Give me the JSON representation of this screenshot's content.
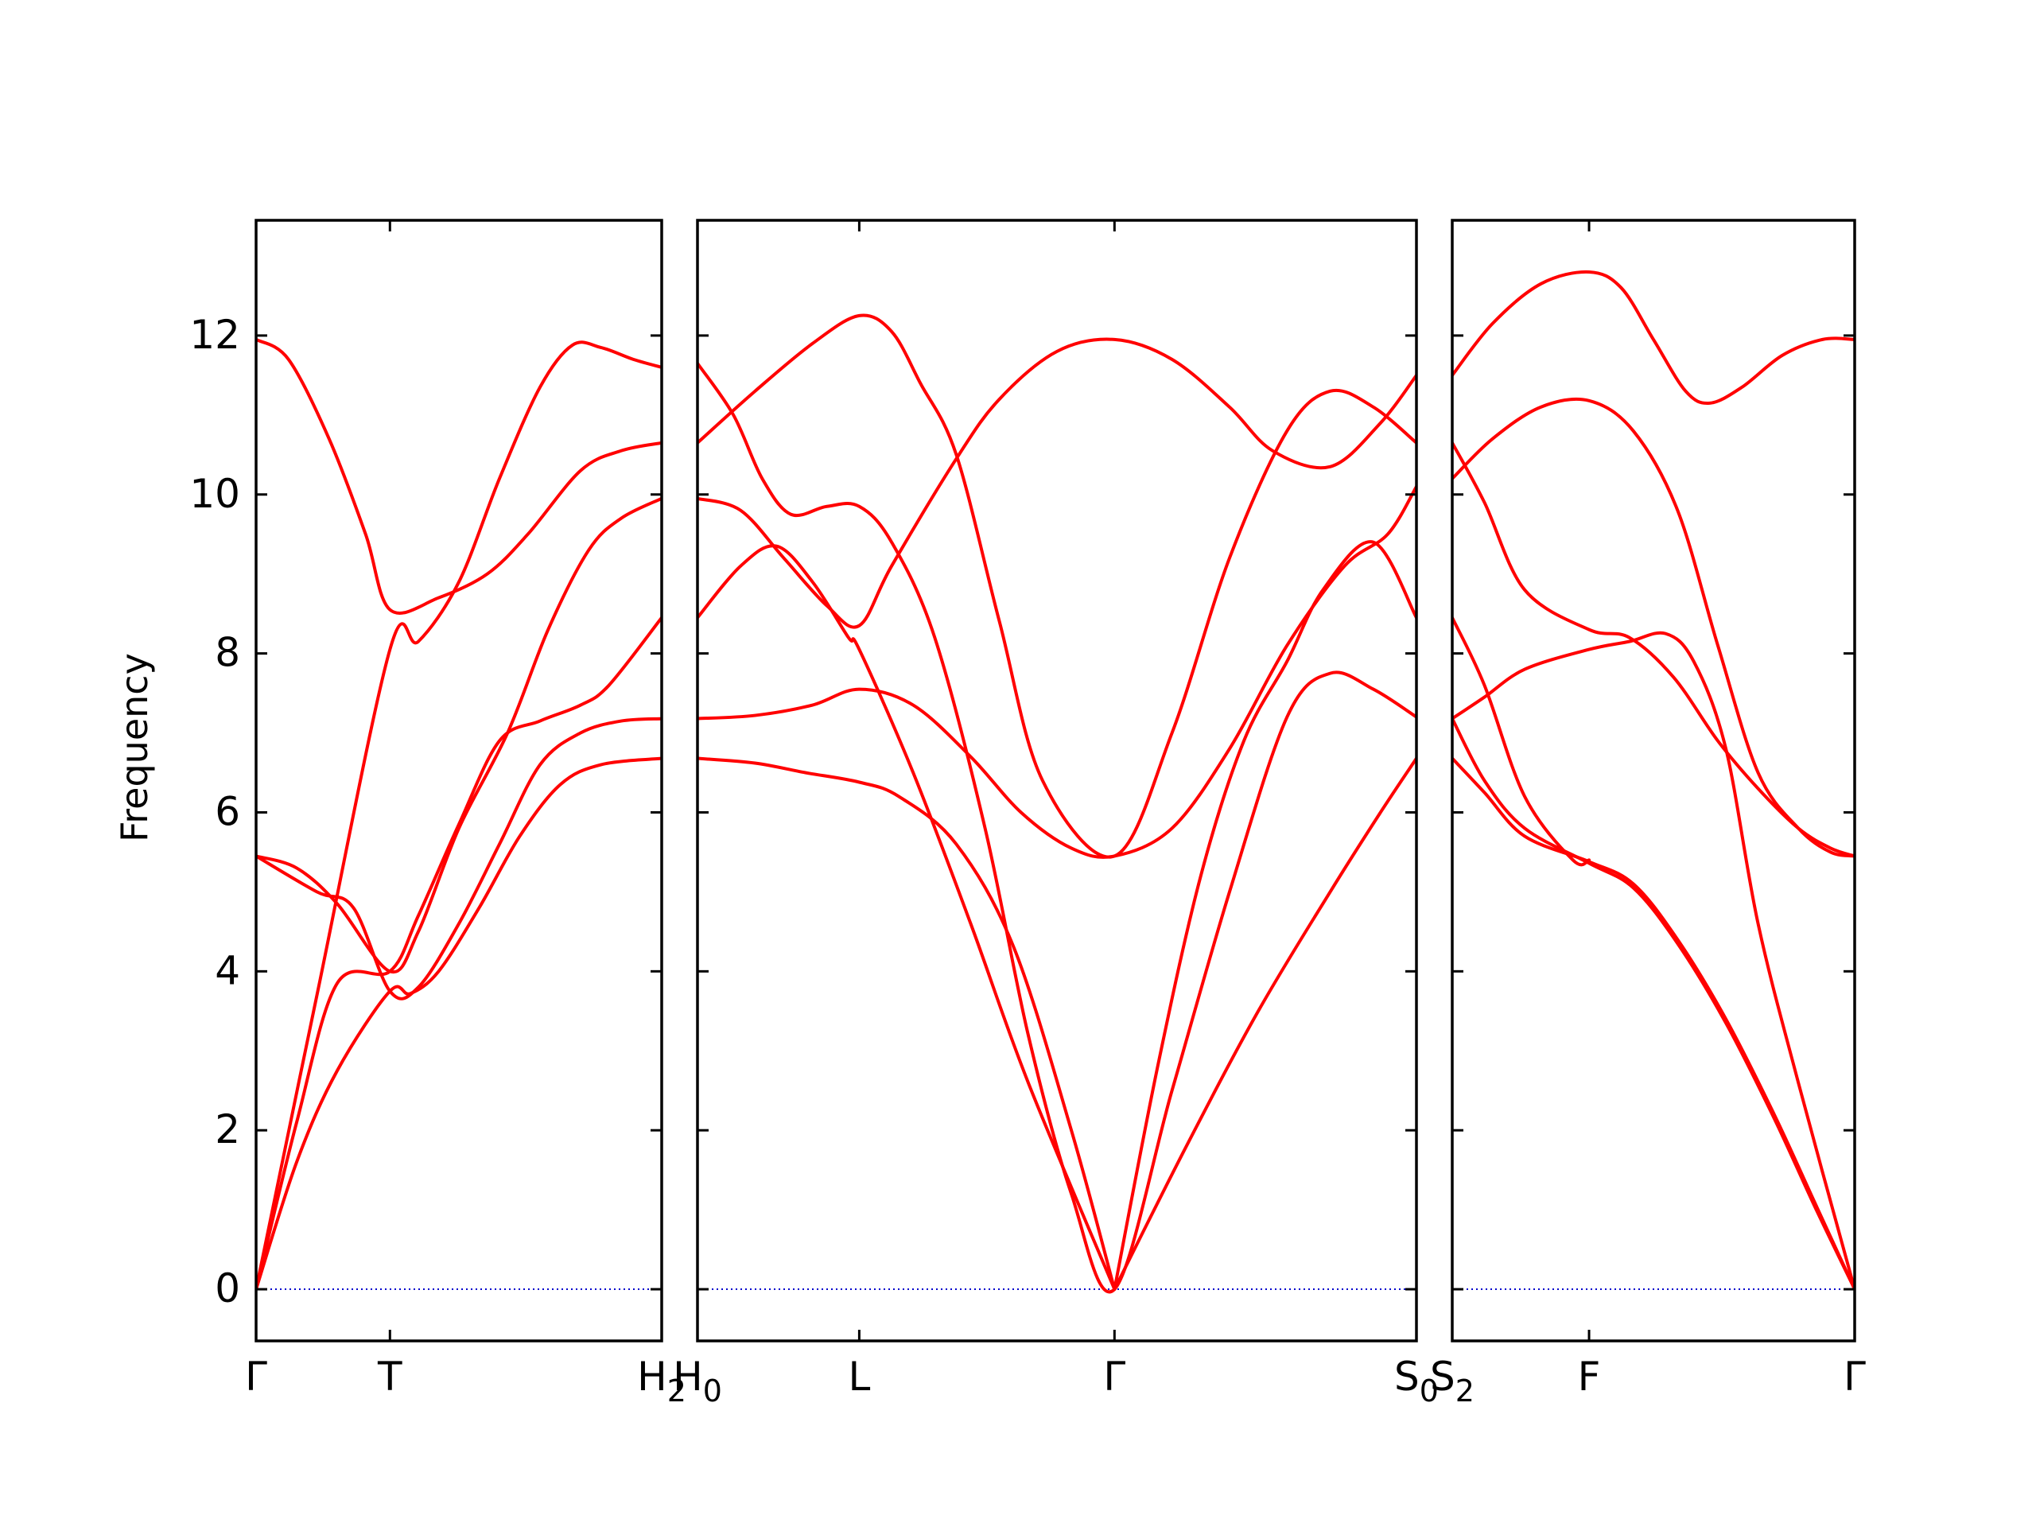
{
  "chart_data": {
    "type": "line",
    "title": "",
    "ylabel": "Frequency",
    "ylim": [
      -0.65,
      13.45
    ],
    "yticks": [
      0,
      2,
      4,
      6,
      8,
      10,
      12
    ],
    "colors": {
      "bands": "#ff0000",
      "zero_line": "#0000cc",
      "axes": "#000000"
    },
    "zero_line": 0,
    "panels": [
      {
        "xlim": [
          0,
          1
        ],
        "ticks": [
          {
            "x": 0,
            "label": "Γ"
          },
          {
            "x": 0.33,
            "label": "T"
          },
          {
            "x": 1,
            "label": "H",
            "sub": "2"
          }
        ],
        "bands": [
          [
            [
              0,
              0
            ],
            [
              0.1,
              1.6
            ],
            [
              0.2,
              2.75
            ],
            [
              0.33,
              3.75
            ],
            [
              0.38,
              3.72
            ],
            [
              0.45,
              4.0
            ],
            [
              0.55,
              4.8
            ],
            [
              0.65,
              5.7
            ],
            [
              0.75,
              6.35
            ],
            [
              0.85,
              6.6
            ],
            [
              1.0,
              6.68
            ]
          ],
          [
            [
              0,
              0
            ],
            [
              0.1,
              2.1
            ],
            [
              0.2,
              3.85
            ],
            [
              0.33,
              4.0
            ],
            [
              0.4,
              4.7
            ],
            [
              0.5,
              5.85
            ],
            [
              0.6,
              6.9
            ],
            [
              0.7,
              7.15
            ],
            [
              0.8,
              7.35
            ],
            [
              0.87,
              7.6
            ],
            [
              1.0,
              8.45
            ]
          ],
          [
            [
              0,
              0
            ],
            [
              0.15,
              3.7
            ],
            [
              0.33,
              8.05
            ],
            [
              0.4,
              8.15
            ],
            [
              0.5,
              8.9
            ],
            [
              0.6,
              10.2
            ],
            [
              0.7,
              11.35
            ],
            [
              0.78,
              11.88
            ],
            [
              0.85,
              11.85
            ],
            [
              0.93,
              11.7
            ],
            [
              1.0,
              11.6
            ]
          ],
          [
            [
              0,
              5.45
            ],
            [
              0.1,
              5.3
            ],
            [
              0.2,
              4.85
            ],
            [
              0.33,
              4.0
            ],
            [
              0.4,
              4.5
            ],
            [
              0.5,
              5.8
            ],
            [
              0.62,
              7.0
            ],
            [
              0.72,
              8.3
            ],
            [
              0.82,
              9.3
            ],
            [
              0.9,
              9.7
            ],
            [
              1.0,
              9.95
            ]
          ],
          [
            [
              0,
              5.45
            ],
            [
              0.15,
              5.0
            ],
            [
              0.24,
              4.8
            ],
            [
              0.33,
              3.75
            ],
            [
              0.4,
              3.8
            ],
            [
              0.5,
              4.6
            ],
            [
              0.6,
              5.6
            ],
            [
              0.7,
              6.6
            ],
            [
              0.8,
              7.0
            ],
            [
              0.9,
              7.15
            ],
            [
              1.0,
              7.18
            ]
          ],
          [
            [
              0,
              11.95
            ],
            [
              0.08,
              11.7
            ],
            [
              0.18,
              10.7
            ],
            [
              0.27,
              9.5
            ],
            [
              0.33,
              8.55
            ],
            [
              0.45,
              8.7
            ],
            [
              0.57,
              9.0
            ],
            [
              0.67,
              9.5
            ],
            [
              0.8,
              10.3
            ],
            [
              0.9,
              10.55
            ],
            [
              1.0,
              10.65
            ]
          ]
        ]
      },
      {
        "xlim": [
          0,
          1
        ],
        "ticks": [
          {
            "x": 0,
            "label": "H",
            "sub": "0"
          },
          {
            "x": 0.225,
            "label": "L"
          },
          {
            "x": 0.58,
            "label": "Γ"
          },
          {
            "x": 1,
            "label": "S",
            "sub": "0"
          }
        ],
        "bands": [
          [
            [
              0,
              6.68
            ],
            [
              0.08,
              6.62
            ],
            [
              0.15,
              6.5
            ],
            [
              0.225,
              6.38
            ],
            [
              0.28,
              6.2
            ],
            [
              0.36,
              5.6
            ],
            [
              0.44,
              4.3
            ],
            [
              0.52,
              2.0
            ],
            [
              0.58,
              0
            ]
          ],
          [
            [
              0,
              7.18
            ],
            [
              0.08,
              7.22
            ],
            [
              0.16,
              7.35
            ],
            [
              0.225,
              7.55
            ],
            [
              0.3,
              7.35
            ],
            [
              0.38,
              6.7
            ],
            [
              0.45,
              6.0
            ],
            [
              0.52,
              5.55
            ],
            [
              0.58,
              5.45
            ],
            [
              0.66,
              5.8
            ],
            [
              0.74,
              6.8
            ],
            [
              0.82,
              8.1
            ],
            [
              0.9,
              9.1
            ],
            [
              0.96,
              9.5
            ],
            [
              1.0,
              10.1
            ]
          ],
          [
            [
              0,
              8.45
            ],
            [
              0.06,
              9.1
            ],
            [
              0.11,
              9.35
            ],
            [
              0.16,
              8.9
            ],
            [
              0.21,
              8.2
            ],
            [
              0.225,
              8.05
            ],
            [
              0.3,
              6.5
            ],
            [
              0.38,
              4.6
            ],
            [
              0.46,
              2.6
            ],
            [
              0.58,
              0
            ]
          ],
          [
            [
              0,
              9.95
            ],
            [
              0.06,
              9.8
            ],
            [
              0.12,
              9.2
            ],
            [
              0.18,
              8.6
            ],
            [
              0.225,
              8.35
            ],
            [
              0.27,
              9.1
            ],
            [
              0.36,
              10.45
            ],
            [
              0.42,
              11.2
            ],
            [
              0.5,
              11.8
            ],
            [
              0.58,
              11.95
            ],
            [
              0.66,
              11.7
            ],
            [
              0.74,
              11.1
            ],
            [
              0.8,
              10.55
            ],
            [
              0.88,
              10.35
            ],
            [
              0.95,
              10.9
            ],
            [
              1.0,
              11.5
            ]
          ],
          [
            [
              0,
              10.65
            ],
            [
              0.08,
              11.3
            ],
            [
              0.16,
              11.9
            ],
            [
              0.225,
              12.25
            ],
            [
              0.27,
              12.05
            ],
            [
              0.31,
              11.4
            ],
            [
              0.36,
              10.5
            ],
            [
              0.42,
              8.4
            ],
            [
              0.48,
              6.4
            ],
            [
              0.58,
              5.45
            ],
            [
              0.66,
              7.0
            ],
            [
              0.74,
              9.2
            ],
            [
              0.82,
              10.8
            ],
            [
              0.88,
              11.3
            ],
            [
              0.94,
              11.1
            ],
            [
              1.0,
              10.65
            ]
          ],
          [
            [
              0,
              11.65
            ],
            [
              0.05,
              11.0
            ],
            [
              0.09,
              10.2
            ],
            [
              0.13,
              9.75
            ],
            [
              0.18,
              9.85
            ],
            [
              0.225,
              9.85
            ],
            [
              0.27,
              9.4
            ],
            [
              0.33,
              8.2
            ],
            [
              0.4,
              5.8
            ],
            [
              0.46,
              3.2
            ],
            [
              0.52,
              1.2
            ],
            [
              0.58,
              0
            ],
            [
              0.66,
              2.5
            ],
            [
              0.74,
              5.0
            ],
            [
              0.82,
              7.2
            ],
            [
              0.88,
              7.75
            ],
            [
              0.94,
              7.55
            ],
            [
              1.0,
              7.2
            ]
          ],
          [
            [
              0.58,
              0
            ],
            [
              0.68,
              1.8
            ],
            [
              0.78,
              3.5
            ],
            [
              0.88,
              5.0
            ],
            [
              0.95,
              6.0
            ],
            [
              1.0,
              6.68
            ]
          ],
          [
            [
              0.58,
              0
            ],
            [
              0.64,
              2.8
            ],
            [
              0.7,
              5.2
            ],
            [
              0.76,
              6.9
            ],
            [
              0.82,
              7.9
            ],
            [
              0.87,
              8.8
            ],
            [
              0.94,
              9.4
            ],
            [
              1.0,
              8.45
            ]
          ]
        ]
      },
      {
        "xlim": [
          0,
          1
        ],
        "ticks": [
          {
            "x": 0,
            "label": "S",
            "sub": "2"
          },
          {
            "x": 0.34,
            "label": "F"
          },
          {
            "x": 1,
            "label": "Γ"
          }
        ],
        "bands": [
          [
            [
              0,
              6.68
            ],
            [
              0.08,
              6.25
            ],
            [
              0.18,
              5.7
            ],
            [
              0.34,
              5.38
            ],
            [
              0.45,
              5.1
            ],
            [
              0.56,
              4.4
            ],
            [
              0.68,
              3.4
            ],
            [
              0.8,
              2.2
            ],
            [
              0.9,
              1.1
            ],
            [
              1.0,
              0
            ]
          ],
          [
            [
              0,
              7.18
            ],
            [
              0.08,
              6.4
            ],
            [
              0.18,
              5.8
            ],
            [
              0.34,
              5.36
            ],
            [
              0.45,
              5.05
            ],
            [
              0.56,
              4.35
            ],
            [
              0.68,
              3.35
            ],
            [
              0.8,
              2.15
            ],
            [
              0.9,
              1.05
            ],
            [
              1.0,
              0
            ]
          ],
          [
            [
              0,
              8.45
            ],
            [
              0.08,
              7.6
            ],
            [
              0.18,
              6.2
            ],
            [
              0.3,
              5.4
            ],
            [
              0.34,
              5.4
            ]
          ],
          [
            [
              0,
              7.18
            ],
            [
              0.08,
              7.45
            ],
            [
              0.18,
              7.8
            ],
            [
              0.34,
              8.05
            ],
            [
              0.44,
              8.15
            ],
            [
              0.53,
              8.25
            ],
            [
              0.6,
              7.9
            ],
            [
              0.68,
              6.8
            ],
            [
              0.76,
              4.6
            ],
            [
              0.86,
              2.6
            ],
            [
              1.0,
              0
            ]
          ],
          [
            [
              0,
              10.65
            ],
            [
              0.08,
              9.9
            ],
            [
              0.18,
              8.8
            ],
            [
              0.34,
              8.3
            ],
            [
              0.44,
              8.2
            ],
            [
              0.55,
              7.7
            ],
            [
              0.66,
              6.9
            ],
            [
              0.76,
              6.3
            ],
            [
              0.86,
              5.8
            ],
            [
              0.94,
              5.55
            ],
            [
              1.0,
              5.45
            ]
          ],
          [
            [
              0,
              10.2
            ],
            [
              0.1,
              10.7
            ],
            [
              0.22,
              11.1
            ],
            [
              0.34,
              11.18
            ],
            [
              0.45,
              10.8
            ],
            [
              0.56,
              9.8
            ],
            [
              0.66,
              8.1
            ],
            [
              0.76,
              6.5
            ],
            [
              0.86,
              5.8
            ],
            [
              0.94,
              5.5
            ],
            [
              1.0,
              5.45
            ]
          ],
          [
            [
              0,
              11.5
            ],
            [
              0.1,
              12.15
            ],
            [
              0.22,
              12.65
            ],
            [
              0.34,
              12.8
            ],
            [
              0.42,
              12.6
            ],
            [
              0.5,
              11.95
            ],
            [
              0.58,
              11.3
            ],
            [
              0.64,
              11.15
            ],
            [
              0.72,
              11.35
            ],
            [
              0.82,
              11.75
            ],
            [
              0.92,
              11.95
            ],
            [
              1.0,
              11.95
            ]
          ]
        ]
      }
    ]
  }
}
